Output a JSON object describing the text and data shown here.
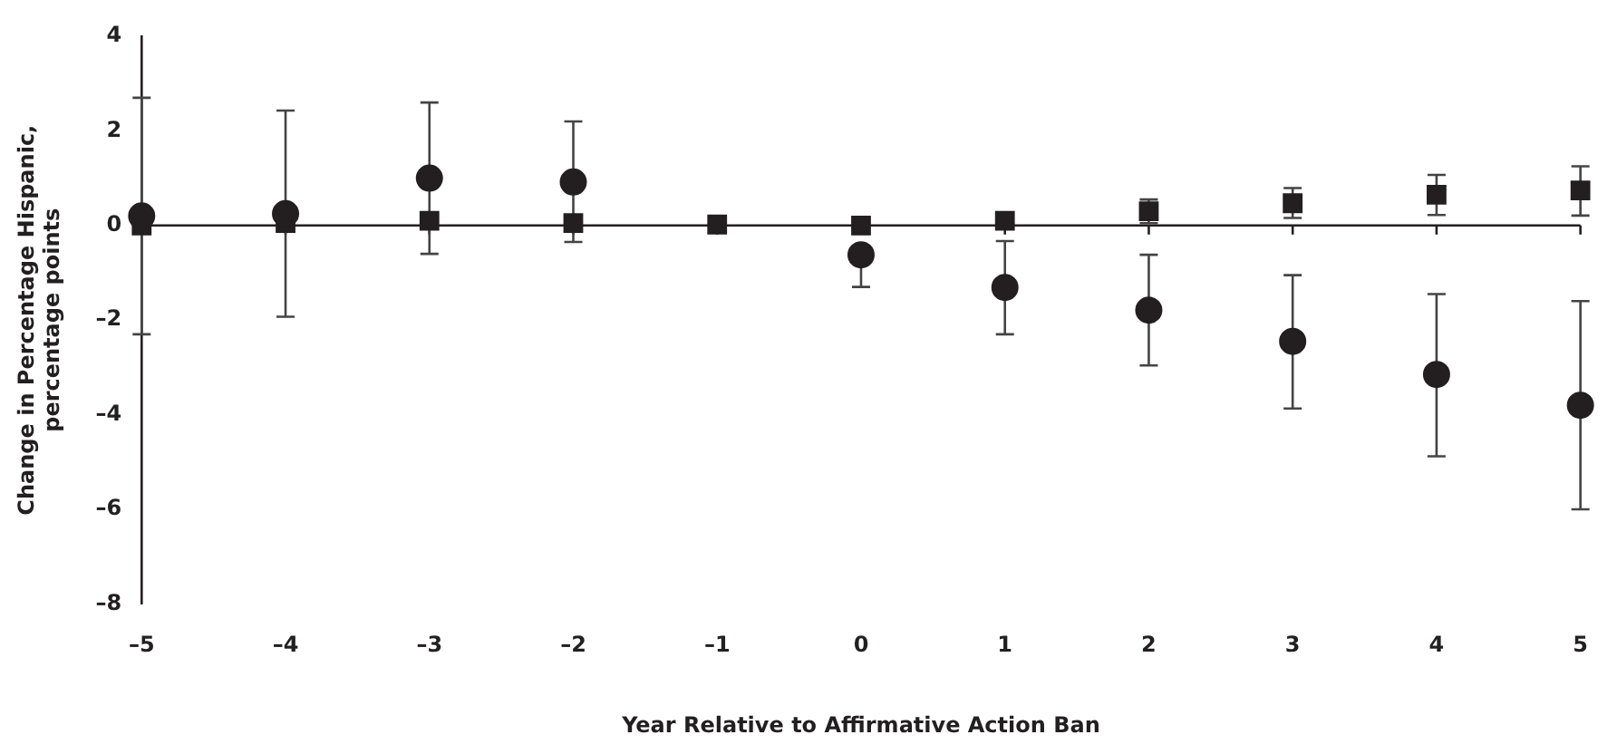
{
  "chart_data": {
    "type": "scatter",
    "xlabel": "Year Relative to Affirmative Action Ban",
    "ylabel": "Change in Percentage Hispanic, percentage points",
    "x": [
      -5,
      -4,
      -3,
      -2,
      -1,
      0,
      1,
      2,
      3,
      4,
      5
    ],
    "series": [
      {
        "color": "#231f20",
        "marker": "circle",
        "values": [
          0.2,
          0.25,
          1.0,
          0.92,
          null,
          -0.62,
          -1.31,
          -1.79,
          -2.45,
          -3.15,
          -3.8
        ],
        "errors": [
          [
            -2.3,
            2.7
          ],
          [
            -1.93,
            2.43
          ],
          [
            -0.6,
            2.6
          ],
          [
            -0.35,
            2.2
          ],
          null,
          [
            -1.3,
            -0.62
          ],
          [
            -2.3,
            -0.33
          ],
          [
            -2.96,
            -0.62
          ],
          [
            -3.87,
            -1.05
          ],
          [
            -4.88,
            -1.45
          ],
          [
            -6,
            -1.6
          ]
        ]
      },
      {
        "color": "#231f20",
        "marker": "square",
        "values": [
          0,
          0.05,
          0.1,
          0.05,
          0.02,
          0,
          0.1,
          0.3,
          0.47,
          0.65,
          0.74
        ],
        "errors": [
          null,
          null,
          null,
          null,
          null,
          null,
          null,
          [
            0.05,
            0.55
          ],
          [
            0.16,
            0.79
          ],
          [
            0.22,
            1.07
          ],
          [
            0.21,
            1.25
          ]
        ]
      }
    ],
    "xlim": [
      -5,
      5
    ],
    "xticks": [
      {
        "value": -5,
        "label": "–5"
      },
      {
        "value": -4,
        "label": "–4"
      },
      {
        "value": -3,
        "label": "–3"
      },
      {
        "value": -2,
        "label": "–2"
      },
      {
        "value": -1,
        "label": "–1"
      },
      0,
      1,
      2,
      3,
      4,
      5
    ],
    "ylim": [
      -8,
      4
    ],
    "yticks": [
      {
        "value": -8,
        "label": "–8"
      },
      {
        "value": -6,
        "label": "–6"
      },
      {
        "value": -4,
        "label": "–4"
      },
      {
        "value": -2,
        "label": "–2"
      },
      0,
      2,
      4
    ],
    "ref_lines": [
      {
        "axis": "y",
        "value": 0
      }
    ],
    "grid": false,
    "legend": false
  }
}
